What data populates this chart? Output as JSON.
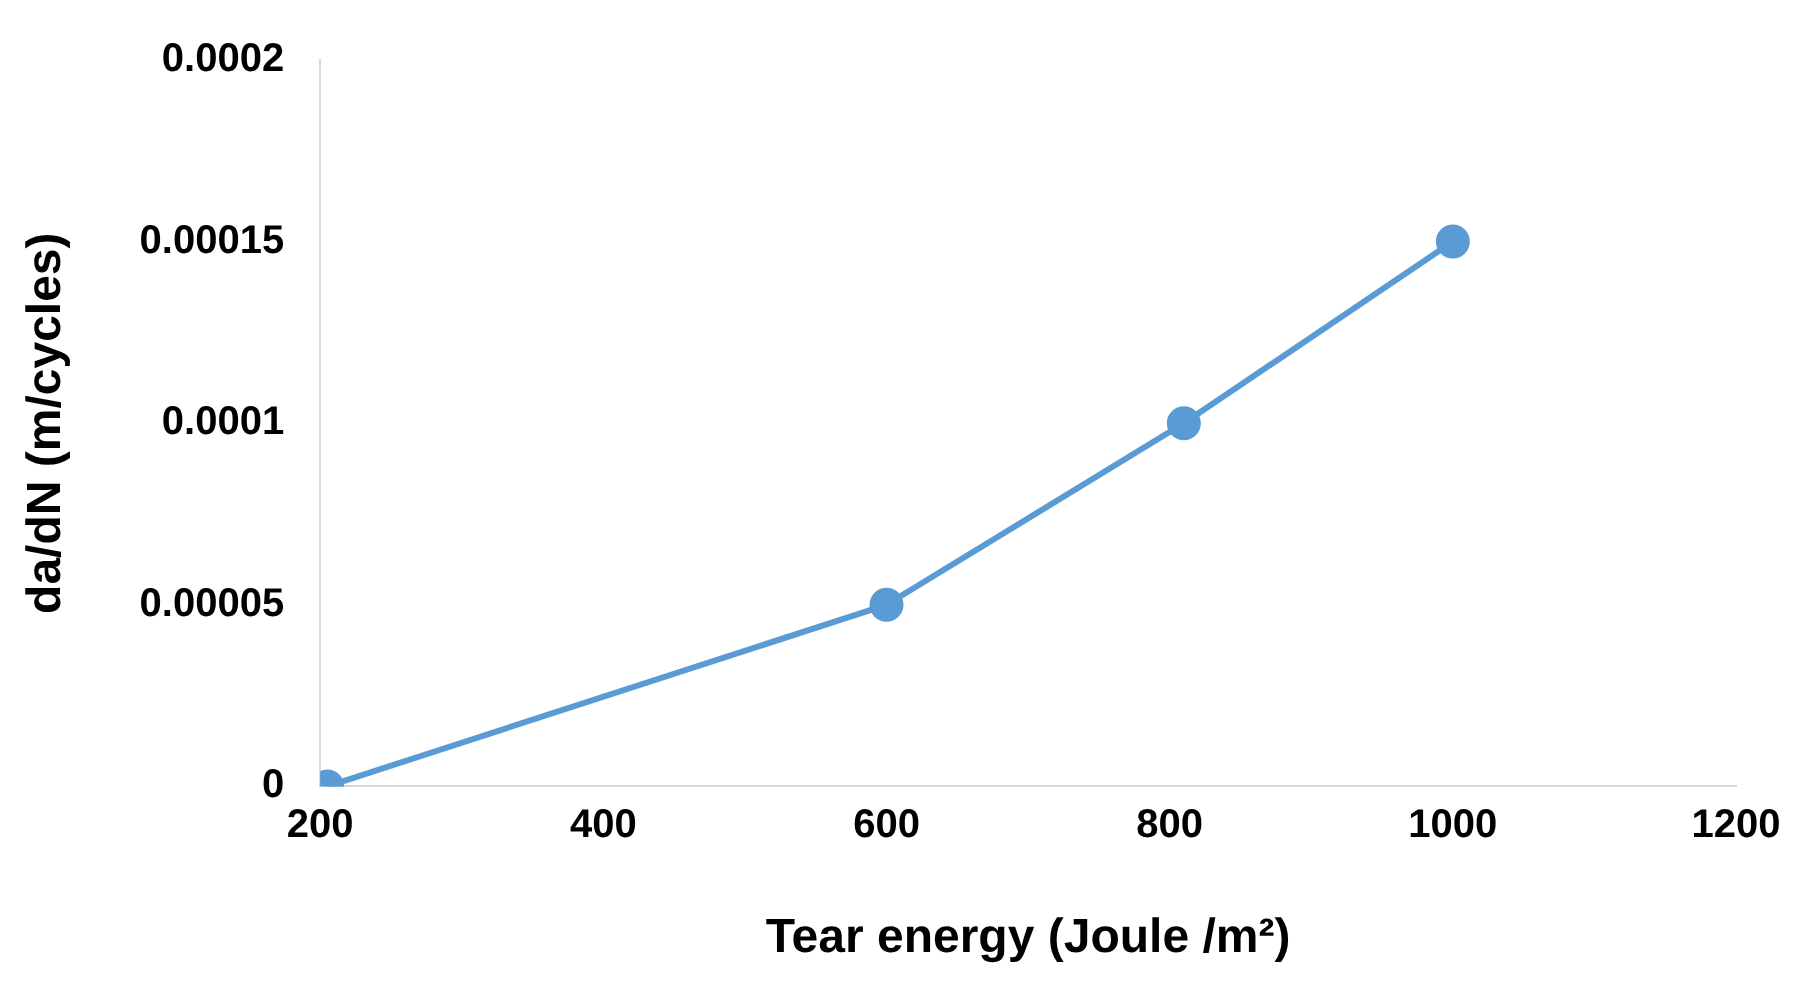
{
  "chart_data": {
    "type": "line",
    "xlabel": "Tear energy (Joule /m²)",
    "ylabel": "da/dN (m/cycles)",
    "x": [
      205,
      600,
      810,
      1000
    ],
    "series": [
      {
        "color": "#5b9bd5",
        "values": [
          0,
          5e-05,
          0.0001,
          0.00015
        ]
      }
    ],
    "xlim": [
      200,
      1200
    ],
    "xticks": [
      200,
      400,
      600,
      800,
      1000,
      1200
    ],
    "ylim": [
      0,
      0.0002
    ],
    "yticks": [
      0,
      {
        "value": 5e-05,
        "label": "0.00005"
      },
      0.0001,
      0.00015,
      0.0002
    ],
    "grid": false,
    "legend": false,
    "marker": "circle",
    "line_style": "solid"
  }
}
